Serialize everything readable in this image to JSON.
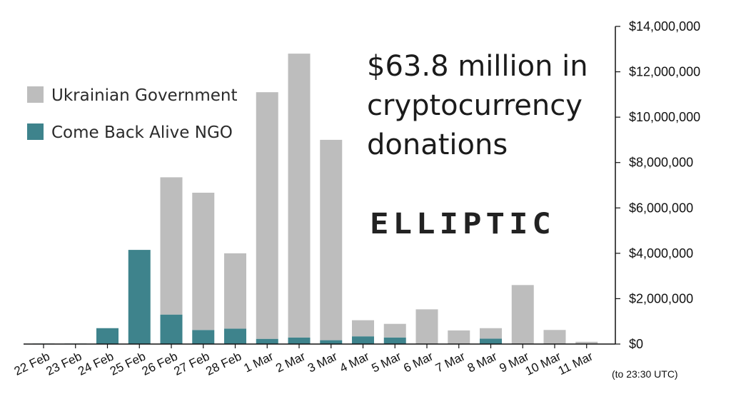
{
  "colors": {
    "gov": "#bdbdbd",
    "ngo": "#3e838c",
    "axis": "#111111",
    "text": "#111111"
  },
  "headline": {
    "line1": "$63.8 million in",
    "line2": "cryptocurrency",
    "line3": "donations"
  },
  "logo": {
    "text": "ELLIPTIC"
  },
  "chart_data": {
    "type": "bar",
    "stacked": true,
    "categories": [
      "22 Feb",
      "23 Feb",
      "24 Feb",
      "25 Feb",
      "26 Feb",
      "27 Feb",
      "28 Feb",
      "1 Mar",
      "2 Mar",
      "3 Mar",
      "4 Mar",
      "5 Mar",
      "6 Mar",
      "7 Mar",
      "8 Mar",
      "9 Mar",
      "10 Mar",
      "11 Mar"
    ],
    "series": [
      {
        "name": "Come Back Alive NGO",
        "color": "#3e838c",
        "values": [
          20000,
          20000,
          700000,
          4150000,
          1300000,
          620000,
          680000,
          230000,
          290000,
          170000,
          340000,
          290000,
          0,
          0,
          240000,
          0,
          0,
          0
        ]
      },
      {
        "name": "Ukrainian Government",
        "color": "#bdbdbd",
        "values": [
          0,
          0,
          0,
          0,
          6050000,
          6050000,
          3320000,
          10870000,
          12510000,
          8830000,
          710000,
          600000,
          1530000,
          600000,
          460000,
          2600000,
          620000,
          100000
        ]
      }
    ],
    "ylim": [
      0,
      14000000
    ],
    "yticks": [
      0,
      2000000,
      4000000,
      6000000,
      8000000,
      10000000,
      12000000,
      14000000
    ],
    "ytick_labels": [
      "$0",
      "$2,000,000",
      "$4,000,000",
      "$6,000,000",
      "$8,000,000",
      "$10,000,000",
      "$12,000,000",
      "$14,000,000"
    ],
    "y_axis_side": "right",
    "x_note": "(to 23:30 UTC)",
    "legend_position": "top-left",
    "grid": false
  }
}
